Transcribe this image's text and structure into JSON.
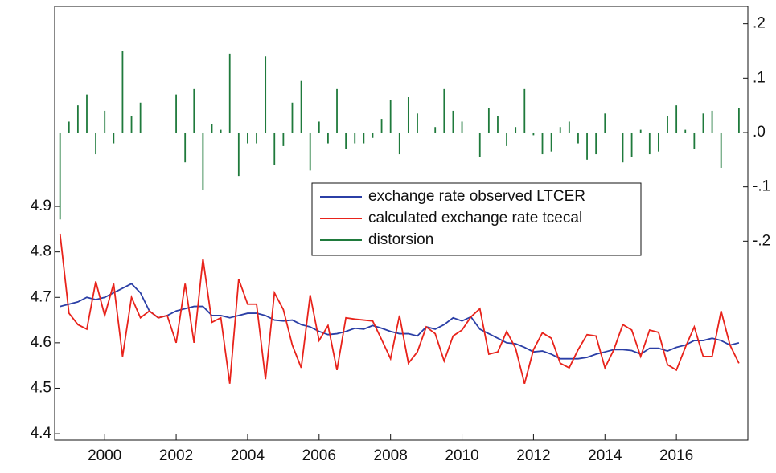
{
  "chart_data": {
    "type": "line",
    "x": [
      1998.75,
      1999,
      1999.25,
      1999.5,
      1999.75,
      2000,
      2000.25,
      2000.5,
      2000.75,
      2001,
      2001.25,
      2001.5,
      2001.75,
      2002,
      2002.25,
      2002.5,
      2002.75,
      2003,
      2003.25,
      2003.5,
      2003.75,
      2004,
      2004.25,
      2004.5,
      2004.75,
      2005,
      2005.25,
      2005.5,
      2005.75,
      2006,
      2006.25,
      2006.5,
      2006.75,
      2007,
      2007.25,
      2007.5,
      2007.75,
      2008,
      2008.25,
      2008.5,
      2008.75,
      2009,
      2009.25,
      2009.5,
      2009.75,
      2010,
      2010.25,
      2010.5,
      2010.75,
      2011,
      2011.25,
      2011.5,
      2011.75,
      2012,
      2012.25,
      2012.5,
      2012.75,
      2013,
      2013.25,
      2013.5,
      2013.75,
      2014,
      2014.25,
      2014.5,
      2014.75,
      2015,
      2015.25,
      2015.5,
      2015.75,
      2016,
      2016.25,
      2016.5,
      2016.75,
      2017,
      2017.25,
      2017.5,
      2017.75
    ],
    "series": [
      {
        "name": "exchange rate observed LTCER",
        "color": "#2b3fa6",
        "type": "line",
        "values": [
          4.68,
          4.685,
          4.69,
          4.7,
          4.695,
          4.7,
          4.71,
          4.72,
          4.73,
          4.71,
          4.67,
          4.655,
          4.66,
          4.67,
          4.675,
          4.68,
          4.68,
          4.66,
          4.66,
          4.655,
          4.66,
          4.665,
          4.665,
          4.66,
          4.65,
          4.648,
          4.65,
          4.64,
          4.635,
          4.625,
          4.618,
          4.62,
          4.625,
          4.632,
          4.63,
          4.638,
          4.632,
          4.625,
          4.62,
          4.62,
          4.615,
          4.635,
          4.63,
          4.64,
          4.655,
          4.648,
          4.657,
          4.63,
          4.62,
          4.61,
          4.6,
          4.598,
          4.59,
          4.58,
          4.582,
          4.575,
          4.565,
          4.565,
          4.565,
          4.568,
          4.575,
          4.58,
          4.585,
          4.585,
          4.583,
          4.575,
          4.588,
          4.588,
          4.582,
          4.59,
          4.595,
          4.605,
          4.605,
          4.61,
          4.605,
          4.595,
          4.6
        ]
      },
      {
        "name": "calculated exchange rate tcecal",
        "color": "#e8231b",
        "type": "line",
        "values": [
          4.84,
          4.665,
          4.64,
          4.63,
          4.735,
          4.66,
          4.73,
          4.57,
          4.7,
          4.655,
          4.67,
          4.655,
          4.66,
          4.6,
          4.73,
          4.6,
          4.785,
          4.645,
          4.655,
          4.51,
          4.74,
          4.685,
          4.685,
          4.52,
          4.71,
          4.673,
          4.595,
          4.545,
          4.705,
          4.605,
          4.638,
          4.54,
          4.655,
          4.652,
          4.65,
          4.648,
          4.607,
          4.565,
          4.66,
          4.555,
          4.58,
          4.635,
          4.62,
          4.56,
          4.615,
          4.628,
          4.657,
          4.675,
          4.575,
          4.58,
          4.625,
          4.588,
          4.51,
          4.585,
          4.622,
          4.61,
          4.555,
          4.545,
          4.585,
          4.618,
          4.615,
          4.545,
          4.585,
          4.64,
          4.628,
          4.57,
          4.628,
          4.623,
          4.552,
          4.54,
          4.59,
          4.635,
          4.57,
          4.57,
          4.67,
          4.595,
          4.555
        ]
      },
      {
        "name": "distorsion",
        "color": "#1f7a3c",
        "type": "bar",
        "axis": "y2",
        "values": [
          -0.16,
          0.02,
          0.05,
          0.07,
          -0.04,
          0.04,
          -0.02,
          0.15,
          0.03,
          0.055,
          0,
          0,
          0,
          0.07,
          -0.055,
          0.08,
          -0.105,
          0.015,
          0.005,
          0.145,
          -0.08,
          -0.02,
          -0.02,
          0.14,
          -0.06,
          -0.025,
          0.055,
          0.095,
          -0.07,
          0.02,
          -0.02,
          0.08,
          -0.03,
          -0.02,
          -0.02,
          -0.01,
          0.025,
          0.06,
          -0.04,
          0.065,
          0.035,
          0,
          0.01,
          0.08,
          0.04,
          0.02,
          0,
          -0.045,
          0.045,
          0.03,
          -0.025,
          0.01,
          0.08,
          -0.005,
          -0.04,
          -0.035,
          0.01,
          0.02,
          -0.02,
          -0.05,
          -0.04,
          0.035,
          0,
          -0.055,
          -0.045,
          0.005,
          -0.04,
          -0.035,
          0.03,
          0.05,
          0.005,
          -0.03,
          0.035,
          0.04,
          -0.065,
          0,
          0.045
        ]
      }
    ],
    "xlim": [
      1998.6,
      2018.0
    ],
    "xticks": [
      2000,
      2002,
      2004,
      2006,
      2008,
      2010,
      2012,
      2014,
      2016
    ],
    "ylim": [
      4.386,
      5.34
    ],
    "yticks": [
      4.4,
      4.5,
      4.6,
      4.7,
      4.8,
      4.9
    ],
    "y2lim": [
      -0.566,
      0.232
    ],
    "y2ticks": [
      {
        "value": 0.2,
        "label": ".2"
      },
      {
        "value": 0.1,
        "label": ".1"
      },
      {
        "value": 0,
        "label": ".0"
      },
      {
        "value": -0.1,
        "label": "-.1"
      },
      {
        "value": -0.2,
        "label": "-.2"
      }
    ]
  }
}
